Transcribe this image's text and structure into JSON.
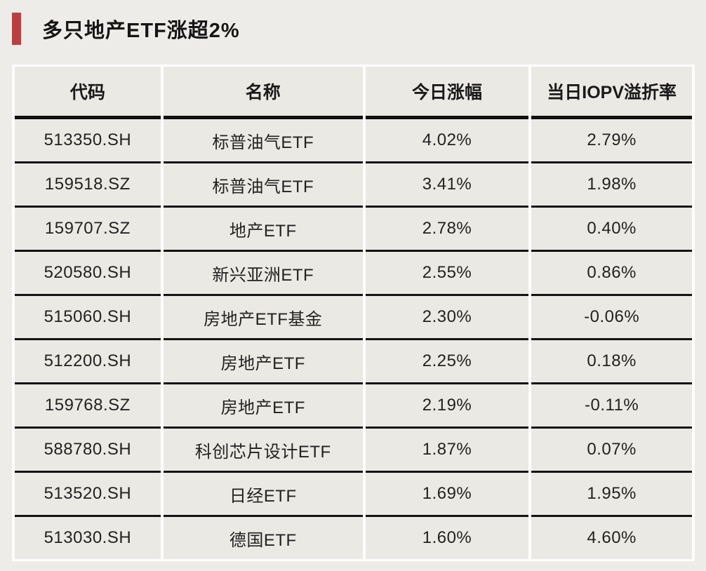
{
  "page": {
    "background_color": "#edece8",
    "cell_color": "#eae9e4",
    "divider_color": "#131313",
    "gap_color": "#fdfdfd",
    "accent_color": "#b94040",
    "text_color": "#1a1a1a"
  },
  "title": "多只地产ETF涨超2%",
  "chart_data": {
    "type": "table",
    "title": "多只地产ETF涨超2%",
    "columns": [
      "代码",
      "名称",
      "今日涨幅",
      "当日IOPV溢折率"
    ],
    "rows": [
      [
        "513350.SH",
        "标普油气ETF",
        "4.02%",
        "2.79%"
      ],
      [
        "159518.SZ",
        "标普油气ETF",
        "3.41%",
        "1.98%"
      ],
      [
        "159707.SZ",
        "地产ETF",
        "2.78%",
        "0.40%"
      ],
      [
        "520580.SH",
        "新兴亚洲ETF",
        "2.55%",
        "0.86%"
      ],
      [
        "515060.SH",
        "房地产ETF基金",
        "2.30%",
        "-0.06%"
      ],
      [
        "512200.SH",
        "房地产ETF",
        "2.25%",
        "0.18%"
      ],
      [
        "159768.SZ",
        "房地产ETF",
        "2.19%",
        "-0.11%"
      ],
      [
        "588780.SH",
        "科创芯片设计ETF",
        "1.87%",
        "0.07%"
      ],
      [
        "513520.SH",
        "日经ETF",
        "1.69%",
        "1.95%"
      ],
      [
        "513030.SH",
        "德国ETF",
        "1.60%",
        "4.60%"
      ]
    ]
  }
}
